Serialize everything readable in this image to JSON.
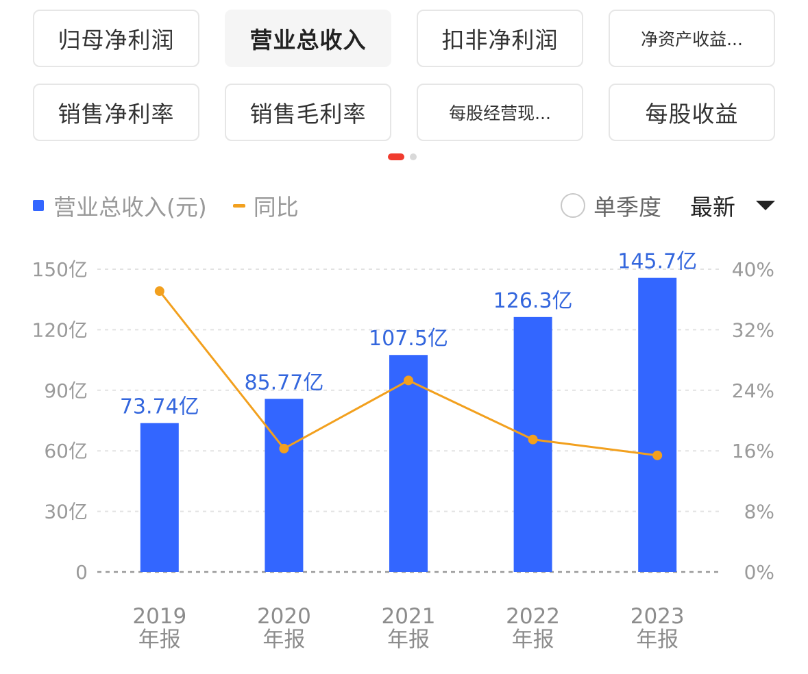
{
  "tabs": [
    {
      "label": "归母净利润",
      "active": false,
      "small": false
    },
    {
      "label": "营业总收入",
      "active": true,
      "small": false
    },
    {
      "label": "扣非净利润",
      "active": false,
      "small": false
    },
    {
      "label": "净资产收益...",
      "active": false,
      "small": true
    },
    {
      "label": "销售净利率",
      "active": false,
      "small": false
    },
    {
      "label": "销售毛利率",
      "active": false,
      "small": false
    },
    {
      "label": "每股经营现...",
      "active": false,
      "small": true
    },
    {
      "label": "每股收益",
      "active": false,
      "small": false
    }
  ],
  "legend": {
    "bar_label": "营业总收入(元)",
    "line_label": "同比"
  },
  "controls": {
    "single_quarter_label": "单季度",
    "period_label": "最新"
  },
  "colors": {
    "bar": "#3366ff",
    "line": "#f2a01e",
    "active_dot": "#f03b2e"
  },
  "chart_data": {
    "type": "bar",
    "categories": [
      [
        "2019",
        "年报"
      ],
      [
        "2020",
        "年报"
      ],
      [
        "2021",
        "年报"
      ],
      [
        "2022",
        "年报"
      ],
      [
        "2023",
        "年报"
      ]
    ],
    "series": [
      {
        "name": "营业总收入(元)",
        "type": "bar",
        "axis": "left",
        "values": [
          73.74,
          85.77,
          107.5,
          126.3,
          145.7
        ],
        "labels": [
          "73.74亿",
          "85.77亿",
          "107.5亿",
          "126.3亿",
          "145.7亿"
        ]
      },
      {
        "name": "同比",
        "type": "line",
        "axis": "right",
        "values": [
          37.1,
          16.3,
          25.3,
          17.5,
          15.4
        ]
      }
    ],
    "y_left": {
      "ticks": [
        0,
        30,
        60,
        90,
        120,
        150
      ],
      "tick_labels": [
        "0",
        "30亿",
        "60亿",
        "90亿",
        "120亿",
        "150亿"
      ],
      "range": [
        0,
        150
      ]
    },
    "y_right": {
      "ticks": [
        0,
        8,
        16,
        24,
        32,
        40
      ],
      "tick_labels": [
        "0%",
        "8%",
        "16%",
        "24%",
        "32%",
        "40%"
      ],
      "range": [
        0,
        40
      ]
    },
    "grid": true
  }
}
